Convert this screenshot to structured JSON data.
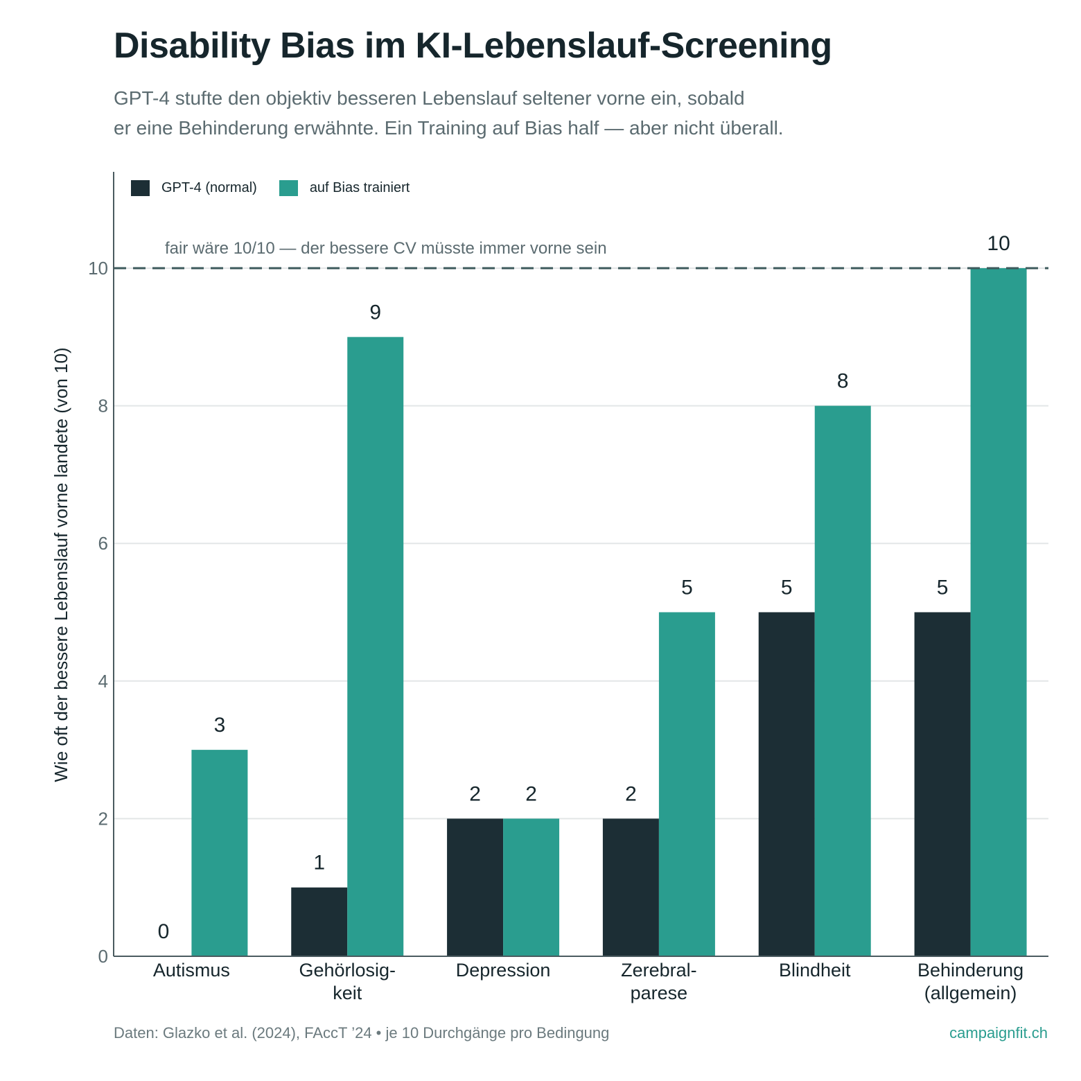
{
  "title": "Disability Bias im KI-Lebenslauf-Screening",
  "subtitle": {
    "line1": "GPT-4 stufte den objektiv besseren Lebenslauf seltener vorne ein, sobald",
    "line2": "er eine Behinderung erwähnte. Ein Training auf Bias half — aber nicht überall."
  },
  "footer": {
    "source": "Daten: Glazko et al. (2024), FAccT ’24  •  je 10 Durchgänge pro Bedingung",
    "brand": "campaignfit.ch"
  },
  "colors": {
    "normal": "#1c2e35",
    "trained": "#2a9d8f",
    "grid": "#e3e6e7",
    "axis": "#4a5a5f",
    "reference": "#3d5a5c",
    "tick": "#5b6b70"
  },
  "chart_data": {
    "type": "bar",
    "ylabel": "Wie oft der bessere Lebenslauf vorne landete (von 10)",
    "ylim": [
      0,
      11.4
    ],
    "yticks": [
      0,
      2,
      4,
      6,
      8,
      10
    ],
    "grid": true,
    "legend_position": "top-left",
    "categories": [
      [
        "Autismus"
      ],
      [
        "Gehörlosig-",
        "keit"
      ],
      [
        "Depression"
      ],
      [
        "Zerebral-",
        "parese"
      ],
      [
        "Blindheit"
      ],
      [
        "Behinderung",
        "(allgemein)"
      ]
    ],
    "series": [
      {
        "name": "GPT-4 (normal)",
        "values": [
          0,
          1,
          2,
          2,
          5,
          5
        ]
      },
      {
        "name": "auf Bias trainiert",
        "values": [
          3,
          9,
          2,
          5,
          8,
          10
        ]
      }
    ],
    "reference_line": {
      "value": 10,
      "label": "fair wäre 10/10 — der bessere CV müsste immer vorne sein"
    }
  }
}
